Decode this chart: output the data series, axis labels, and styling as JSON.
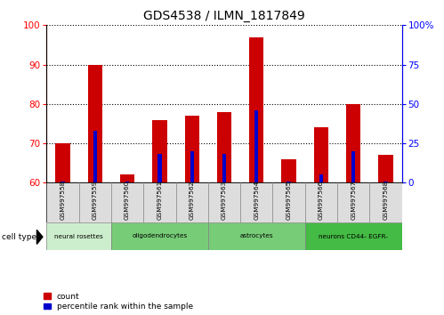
{
  "title": "GDS4538 / ILMN_1817849",
  "samples": [
    "GSM997558",
    "GSM997559",
    "GSM997560",
    "GSM997561",
    "GSM997562",
    "GSM997563",
    "GSM997564",
    "GSM997565",
    "GSM997566",
    "GSM997567",
    "GSM997568"
  ],
  "count_values": [
    70,
    90,
    62,
    76,
    77,
    78,
    97,
    66,
    74,
    80,
    67
  ],
  "percentile_values": [
    1,
    33,
    1,
    18,
    20,
    18,
    46,
    1,
    5,
    20,
    1
  ],
  "ylim_left": [
    60,
    100
  ],
  "ylim_right": [
    0,
    100
  ],
  "yticks_left": [
    60,
    70,
    80,
    90,
    100
  ],
  "yticks_right": [
    0,
    25,
    50,
    75,
    100
  ],
  "ytick_labels_right": [
    "0",
    "25",
    "50",
    "75",
    "100%"
  ],
  "count_color": "#cc0000",
  "percentile_color": "#0000cc",
  "legend_items": [
    "count",
    "percentile rank within the sample"
  ],
  "cell_type_data": [
    {
      "label": "neural rosettes",
      "start": 0,
      "end": 2,
      "color": "#cceecc"
    },
    {
      "label": "oligodendrocytes",
      "start": 2,
      "end": 5,
      "color": "#77cc77"
    },
    {
      "label": "astrocytes",
      "start": 5,
      "end": 8,
      "color": "#77cc77"
    },
    {
      "label": "neurons CD44- EGFR-",
      "start": 8,
      "end": 11,
      "color": "#44bb44"
    }
  ]
}
